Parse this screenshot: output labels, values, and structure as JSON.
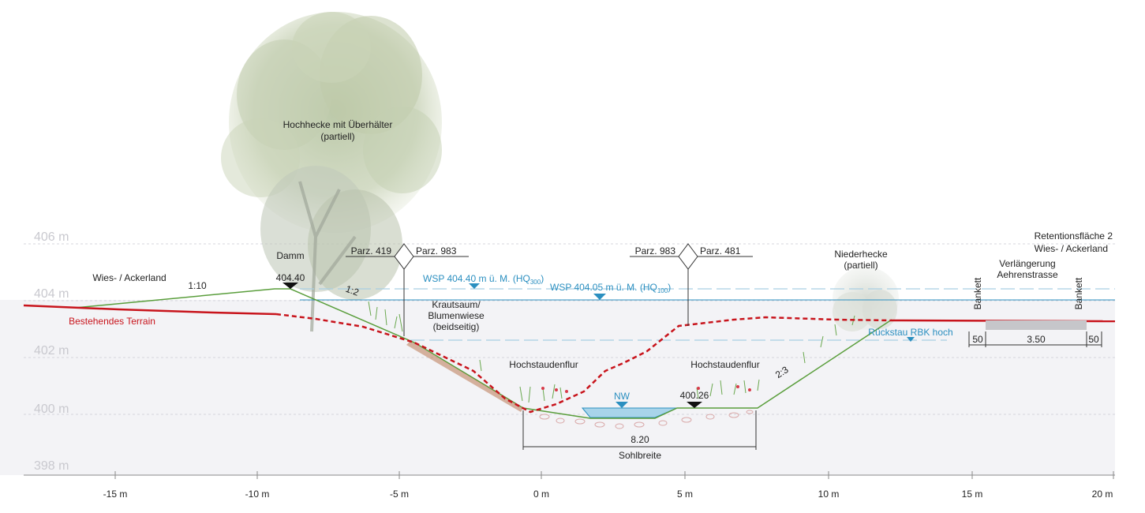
{
  "elevations": [
    "406 m",
    "404 m",
    "402 m",
    "400 m",
    "398 m"
  ],
  "x_axis": [
    "-15 m",
    "-10 m",
    "-5 m",
    "0 m",
    "5 m",
    "10 m",
    "15 m",
    "20 m"
  ],
  "labels": {
    "tree": [
      "Hochhecke mit Überhälter",
      "(partiell)"
    ],
    "damm": "Damm",
    "damm_height": "404.40",
    "slope_left": "1:10",
    "slope_dam": "1:2",
    "slope_right": "2:3",
    "land_left": "Wies- / Ackerland",
    "terrain": "Bestehendes Terrain",
    "parz_left_a": "Parz. 419",
    "parz_left_b": "Parz. 983",
    "parz_right_a": "Parz. 983",
    "parz_right_b": "Parz. 481",
    "wsp_hq300_main": "WSP 404.40 m ü. M. (HQ",
    "wsp_hq300_sub": "300",
    "wsp_hq300_close": ")",
    "wsp_hq100_main": "WSP 404.05 m ü. M. (HQ",
    "wsp_hq100_sub": "100",
    "wsp_hq100_close": ")",
    "krautsaum": [
      "Krautsaum/",
      "Blumenwiese",
      "(beidseitig)"
    ],
    "hochstauden_left": "Hochstaudenflur",
    "hochstauden_right": "Hochstaudenflur",
    "nw": "NW",
    "sohle_height": "400.26",
    "sohl_width": "8.20",
    "sohl_label": "Sohlbreite",
    "niederhecke": [
      "Niederhecke",
      "(partiell)"
    ],
    "rueckstau": "Rückstau RBK hoch",
    "retention": [
      "Retentionsfläche 2",
      "Wies- / Ackerland"
    ],
    "road": [
      "Verlängerung",
      "Aehrenstrasse"
    ],
    "bankett_left": "Bankett",
    "bankett_right": "Bankett",
    "dim_left": "50",
    "dim_road": "3.50",
    "dim_right": "50"
  },
  "colors": {
    "terrain": "#c8141c",
    "water": "#2b8fc0",
    "project_line": "#5a9e3c",
    "ground_fill": "#f3f3f6",
    "grid": "#d4d4dc"
  }
}
